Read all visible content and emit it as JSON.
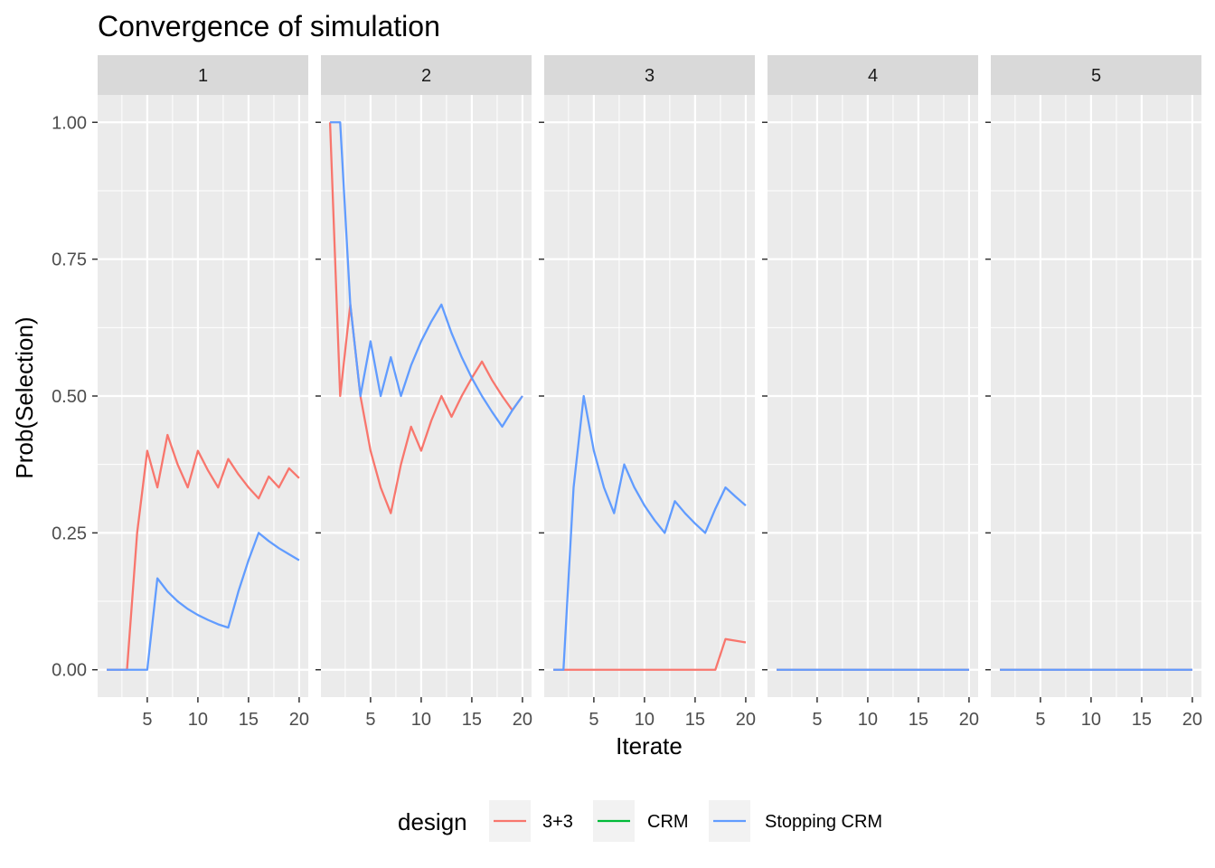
{
  "chart_data": {
    "type": "line",
    "title": "Convergence of simulation",
    "xlabel": "Iterate",
    "ylabel": "Prob(Selection)",
    "facets": [
      "1",
      "2",
      "3",
      "4",
      "5"
    ],
    "xlim": [
      0.1,
      20.9
    ],
    "ylim": [
      -0.05,
      1.05
    ],
    "xticks": [
      5,
      10,
      15,
      20
    ],
    "yticks": [
      0,
      0.25,
      0.5,
      0.75,
      1.0
    ],
    "ytick_labels": [
      "0.00",
      "0.25",
      "0.50",
      "0.75",
      "1.00"
    ],
    "x": [
      1,
      2,
      3,
      4,
      5,
      6,
      7,
      8,
      9,
      10,
      11,
      12,
      13,
      14,
      15,
      16,
      17,
      18,
      19,
      20
    ],
    "legend": {
      "title": "design",
      "position": "bottom",
      "entries": [
        {
          "label": "3+3",
          "color": "#F8766D"
        },
        {
          "label": "CRM",
          "color": "#00BA38"
        },
        {
          "label": "Stopping CRM",
          "color": "#619CFF"
        }
      ]
    },
    "panels": [
      {
        "facet": "1",
        "series": [
          {
            "design": "3+3",
            "values": [
              0,
              0,
              0,
              0.25,
              0.4,
              0.333,
              0.429,
              0.375,
              0.333,
              0.4,
              0.364,
              0.333,
              0.385,
              0.357,
              0.333,
              0.313,
              0.353,
              0.333,
              0.368,
              0.35
            ]
          },
          {
            "design": "Stopping CRM",
            "values": [
              0,
              0,
              0,
              0,
              0,
              0.167,
              0.143,
              0.125,
              0.111,
              0.1,
              0.091,
              0.083,
              0.077,
              0.143,
              0.2,
              0.25,
              0.235,
              0.222,
              0.211,
              0.2
            ]
          }
        ]
      },
      {
        "facet": "2",
        "series": [
          {
            "design": "3+3",
            "values": [
              1.0,
              0.5,
              0.667,
              0.5,
              0.4,
              0.333,
              0.286,
              0.375,
              0.444,
              0.4,
              0.455,
              0.5,
              0.462,
              0.5,
              0.533,
              0.563,
              0.529,
              0.5,
              0.474,
              0.5
            ]
          },
          {
            "design": "Stopping CRM",
            "values": [
              1.0,
              1.0,
              0.667,
              0.5,
              0.6,
              0.5,
              0.571,
              0.5,
              0.556,
              0.6,
              0.636,
              0.667,
              0.615,
              0.571,
              0.533,
              0.5,
              0.471,
              0.444,
              0.474,
              0.5
            ]
          }
        ]
      },
      {
        "facet": "3",
        "series": [
          {
            "design": "3+3",
            "values": [
              0,
              0,
              0,
              0,
              0,
              0,
              0,
              0,
              0,
              0,
              0,
              0,
              0,
              0,
              0,
              0,
              0,
              0.056,
              0.053,
              0.05
            ]
          },
          {
            "design": "Stopping CRM",
            "values": [
              0,
              0,
              0.333,
              0.5,
              0.4,
              0.333,
              0.286,
              0.375,
              0.333,
              0.3,
              0.273,
              0.25,
              0.308,
              0.286,
              0.267,
              0.25,
              0.294,
              0.333,
              0.316,
              0.3
            ]
          }
        ]
      },
      {
        "facet": "4",
        "series": [
          {
            "design": "3+3",
            "values": [
              0,
              0,
              0,
              0,
              0,
              0,
              0,
              0,
              0,
              0,
              0,
              0,
              0,
              0,
              0,
              0,
              0,
              0,
              0,
              0
            ]
          },
          {
            "design": "Stopping CRM",
            "values": [
              0,
              0,
              0,
              0,
              0,
              0,
              0,
              0,
              0,
              0,
              0,
              0,
              0,
              0,
              0,
              0,
              0,
              0,
              0,
              0
            ]
          }
        ]
      },
      {
        "facet": "5",
        "series": [
          {
            "design": "3+3",
            "values": [
              0,
              0,
              0,
              0,
              0,
              0,
              0,
              0,
              0,
              0,
              0,
              0,
              0,
              0,
              0,
              0,
              0,
              0,
              0,
              0
            ]
          },
          {
            "design": "Stopping CRM",
            "values": [
              0,
              0,
              0,
              0,
              0,
              0,
              0,
              0,
              0,
              0,
              0,
              0,
              0,
              0,
              0,
              0,
              0,
              0,
              0,
              0
            ]
          }
        ]
      }
    ]
  }
}
